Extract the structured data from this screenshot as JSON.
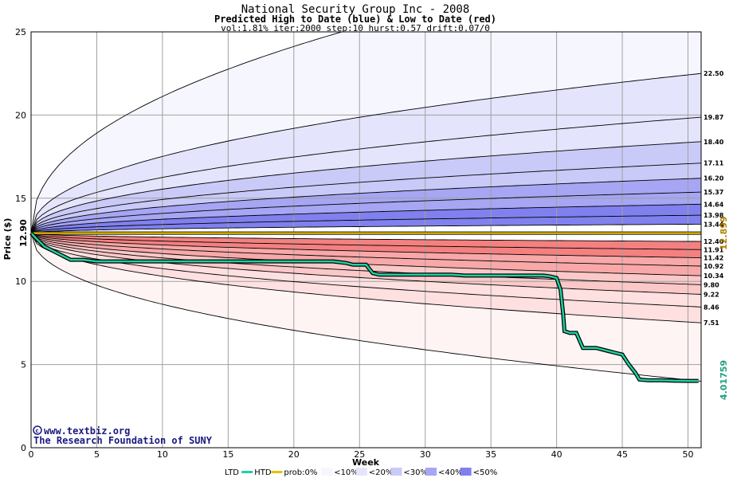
{
  "header": {
    "title": "National Security Group Inc - 2008",
    "subtitle": "Predicted High to Date (blue) &  Low to Date (red)",
    "params": "vol:1.81% iter:2000 step:10 hurst:0.57 drift:0.07/0"
  },
  "credits": {
    "line1": "www.textbiz.org",
    "line2": "The Research Foundation of SUNY"
  },
  "colors": {
    "blue_bands": [
      "#f6f6ff",
      "#e4e4fc",
      "#cacaf8",
      "#a6a6f4",
      "#8080ee"
    ],
    "red_bands": [
      "#fff4f4",
      "#fee0e0",
      "#fbc8c8",
      "#f8a8a8",
      "#f48080"
    ],
    "ltd_line": "#20d0a0",
    "start_line": "#e8c000",
    "start_label": "#b08000",
    "end_label": "#20a080"
  },
  "chart_data": {
    "type": "line",
    "title": "National Security Group Inc - 2008",
    "xlabel": "Week",
    "ylabel": "Price ($)",
    "xlim": [
      0,
      51
    ],
    "ylim": [
      0,
      25
    ],
    "x_ticks": [
      0,
      5,
      10,
      15,
      20,
      25,
      30,
      35,
      40,
      45,
      50
    ],
    "y_ticks": [
      0,
      5,
      10,
      15,
      20,
      25
    ],
    "start_price": 12.9,
    "start_price_label": "12.90",
    "right_start_label": "12.899",
    "end_value_label": "4.01759",
    "upper_percentile_curves": [
      {
        "label": "",
        "end": 30.0
      },
      {
        "label": "22.50",
        "end": 22.5
      },
      {
        "label": "19.87",
        "end": 19.87
      },
      {
        "label": "18.40",
        "end": 18.4
      },
      {
        "label": "17.11",
        "end": 17.11
      },
      {
        "label": "16.20",
        "end": 16.2
      },
      {
        "label": "15.37",
        "end": 15.37
      },
      {
        "label": "14.64",
        "end": 14.64
      },
      {
        "label": "13.98",
        "end": 13.98
      },
      {
        "label": "13.44",
        "end": 13.44
      }
    ],
    "lower_percentile_curves": [
      {
        "label": "12.40",
        "end": 12.4
      },
      {
        "label": "11.91",
        "end": 11.91
      },
      {
        "label": "11.42",
        "end": 11.42
      },
      {
        "label": "10.92",
        "end": 10.92
      },
      {
        "label": "10.34",
        "end": 10.34
      },
      {
        "label": "9.80",
        "end": 9.8
      },
      {
        "label": "9.22",
        "end": 9.22
      },
      {
        "label": "8.46",
        "end": 8.46
      },
      {
        "label": "7.51",
        "end": 7.51
      },
      {
        "label": "",
        "end": 4.0
      }
    ],
    "series": [
      {
        "name": "LTD",
        "x": [
          0,
          0.5,
          1,
          1.5,
          2.0,
          2.5,
          3,
          4,
          5,
          6,
          7,
          8,
          9,
          10,
          11,
          12,
          13,
          14,
          15,
          16,
          17,
          18,
          19,
          20,
          21,
          22,
          23,
          24,
          24.5,
          25,
          25.5,
          26,
          26.5,
          27,
          28,
          29,
          30,
          31,
          32,
          33,
          34,
          35,
          36,
          37,
          38,
          39,
          39.5,
          40,
          40.3,
          40.5,
          40.6,
          41,
          41.5,
          42,
          43,
          43.5,
          44,
          44.5,
          45,
          45.5,
          46,
          46.3,
          47,
          48,
          49,
          50,
          50.8
        ],
        "values": [
          12.9,
          12.5,
          12.1,
          11.9,
          11.7,
          11.5,
          11.3,
          11.3,
          11.2,
          11.2,
          11.2,
          11.2,
          11.2,
          11.2,
          11.2,
          11.2,
          11.2,
          11.2,
          11.2,
          11.2,
          11.2,
          11.2,
          11.2,
          11.2,
          11.2,
          11.2,
          11.2,
          11.1,
          11.0,
          11.0,
          11.0,
          10.5,
          10.4,
          10.4,
          10.4,
          10.4,
          10.4,
          10.4,
          10.4,
          10.35,
          10.35,
          10.35,
          10.35,
          10.35,
          10.35,
          10.35,
          10.3,
          10.2,
          9.5,
          8.0,
          7.0,
          6.9,
          6.9,
          6.0,
          6.0,
          5.9,
          5.8,
          5.7,
          5.6,
          5.0,
          4.5,
          4.1,
          4.05,
          4.05,
          4.03,
          4.02,
          4.02
        ]
      }
    ]
  },
  "legend": {
    "ltd": "LTD",
    "htd": "HTD",
    "prob": "prob:0%",
    "bands": [
      "<10%",
      "<20%",
      "<30%",
      "<40%",
      "<50%"
    ]
  }
}
